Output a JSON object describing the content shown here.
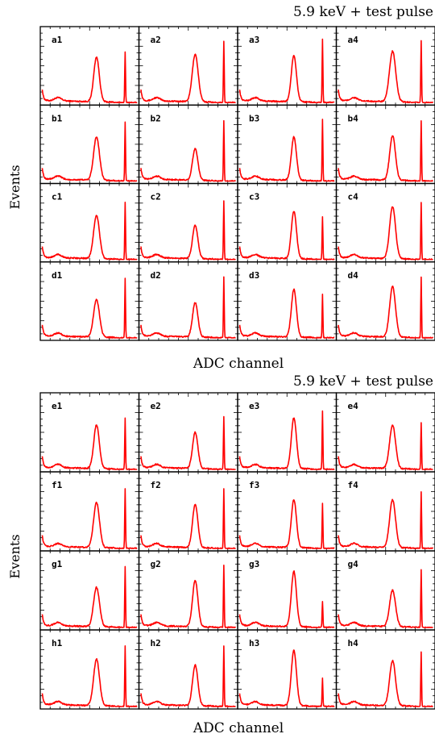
{
  "chart_data": [
    {
      "type": "line",
      "title": "5.9 keV + test pulse",
      "xlabel": "ADC channel",
      "ylabel": "Events",
      "grid": false,
      "panel_layout": "4x4",
      "line_color": "#ff0000",
      "panels": [
        {
          "label": "a1",
          "peak_x": 0.57,
          "peak_h": 0.62,
          "peak_w": 0.028,
          "pulse_x": 0.86,
          "pulse_h": 0.7
        },
        {
          "label": "a2",
          "peak_x": 0.57,
          "peak_h": 0.66,
          "peak_w": 0.03,
          "pulse_x": 0.86,
          "pulse_h": 0.85
        },
        {
          "label": "a3",
          "peak_x": 0.57,
          "peak_h": 0.64,
          "peak_w": 0.026,
          "pulse_x": 0.86,
          "pulse_h": 0.88
        },
        {
          "label": "a4",
          "peak_x": 0.57,
          "peak_h": 0.7,
          "peak_w": 0.032,
          "pulse_x": 0.86,
          "pulse_h": 0.86
        },
        {
          "label": "b1",
          "peak_x": 0.57,
          "peak_h": 0.6,
          "peak_w": 0.03,
          "pulse_x": 0.86,
          "pulse_h": 0.82
        },
        {
          "label": "b2",
          "peak_x": 0.57,
          "peak_h": 0.44,
          "peak_w": 0.027,
          "pulse_x": 0.86,
          "pulse_h": 0.84
        },
        {
          "label": "b3",
          "peak_x": 0.57,
          "peak_h": 0.6,
          "peak_w": 0.026,
          "pulse_x": 0.86,
          "pulse_h": 0.86
        },
        {
          "label": "b4",
          "peak_x": 0.57,
          "peak_h": 0.62,
          "peak_w": 0.029,
          "pulse_x": 0.86,
          "pulse_h": 0.84
        },
        {
          "label": "c1",
          "peak_x": 0.57,
          "peak_h": 0.6,
          "peak_w": 0.03,
          "pulse_x": 0.86,
          "pulse_h": 0.8
        },
        {
          "label": "c2",
          "peak_x": 0.57,
          "peak_h": 0.46,
          "peak_w": 0.027,
          "pulse_x": 0.86,
          "pulse_h": 0.82
        },
        {
          "label": "c3",
          "peak_x": 0.57,
          "peak_h": 0.66,
          "peak_w": 0.026,
          "pulse_x": 0.86,
          "pulse_h": 0.6
        },
        {
          "label": "c4",
          "peak_x": 0.57,
          "peak_h": 0.72,
          "peak_w": 0.03,
          "pulse_x": 0.86,
          "pulse_h": 0.8
        },
        {
          "label": "d1",
          "peak_x": 0.57,
          "peak_h": 0.52,
          "peak_w": 0.03,
          "pulse_x": 0.86,
          "pulse_h": 0.82
        },
        {
          "label": "d2",
          "peak_x": 0.57,
          "peak_h": 0.48,
          "peak_w": 0.027,
          "pulse_x": 0.86,
          "pulse_h": 0.84
        },
        {
          "label": "d3",
          "peak_x": 0.57,
          "peak_h": 0.66,
          "peak_w": 0.026,
          "pulse_x": 0.86,
          "pulse_h": 0.6
        },
        {
          "label": "d4",
          "peak_x": 0.57,
          "peak_h": 0.7,
          "peak_w": 0.03,
          "pulse_x": 0.86,
          "pulse_h": 0.84
        }
      ]
    },
    {
      "type": "line",
      "title": "5.9 keV + test pulse",
      "xlabel": "ADC channel",
      "ylabel": "Events",
      "grid": false,
      "panel_layout": "4x4",
      "line_color": "#ff0000",
      "panels": [
        {
          "label": "e1",
          "peak_x": 0.57,
          "peak_h": 0.6,
          "peak_w": 0.028,
          "pulse_x": 0.86,
          "pulse_h": 0.7
        },
        {
          "label": "e2",
          "peak_x": 0.57,
          "peak_h": 0.5,
          "peak_w": 0.027,
          "pulse_x": 0.86,
          "pulse_h": 0.72
        },
        {
          "label": "e3",
          "peak_x": 0.57,
          "peak_h": 0.7,
          "peak_w": 0.026,
          "pulse_x": 0.86,
          "pulse_h": 0.8
        },
        {
          "label": "e4",
          "peak_x": 0.57,
          "peak_h": 0.6,
          "peak_w": 0.03,
          "pulse_x": 0.86,
          "pulse_h": 0.64
        },
        {
          "label": "f1",
          "peak_x": 0.57,
          "peak_h": 0.62,
          "peak_w": 0.03,
          "pulse_x": 0.86,
          "pulse_h": 0.82
        },
        {
          "label": "f2",
          "peak_x": 0.57,
          "peak_h": 0.6,
          "peak_w": 0.027,
          "pulse_x": 0.86,
          "pulse_h": 0.82
        },
        {
          "label": "f3",
          "peak_x": 0.57,
          "peak_h": 0.66,
          "peak_w": 0.026,
          "pulse_x": 0.86,
          "pulse_h": 0.62
        },
        {
          "label": "f4",
          "peak_x": 0.57,
          "peak_h": 0.66,
          "peak_w": 0.03,
          "pulse_x": 0.86,
          "pulse_h": 0.78
        },
        {
          "label": "g1",
          "peak_x": 0.57,
          "peak_h": 0.54,
          "peak_w": 0.03,
          "pulse_x": 0.86,
          "pulse_h": 0.84
        },
        {
          "label": "g2",
          "peak_x": 0.57,
          "peak_h": 0.64,
          "peak_w": 0.027,
          "pulse_x": 0.86,
          "pulse_h": 0.86
        },
        {
          "label": "g3",
          "peak_x": 0.57,
          "peak_h": 0.76,
          "peak_w": 0.026,
          "pulse_x": 0.86,
          "pulse_h": 0.36
        },
        {
          "label": "g4",
          "peak_x": 0.57,
          "peak_h": 0.5,
          "peak_w": 0.03,
          "pulse_x": 0.86,
          "pulse_h": 0.8
        },
        {
          "label": "h1",
          "peak_x": 0.57,
          "peak_h": 0.64,
          "peak_w": 0.03,
          "pulse_x": 0.86,
          "pulse_h": 0.84
        },
        {
          "label": "h2",
          "peak_x": 0.57,
          "peak_h": 0.56,
          "peak_w": 0.027,
          "pulse_x": 0.86,
          "pulse_h": 0.84
        },
        {
          "label": "h3",
          "peak_x": 0.57,
          "peak_h": 0.76,
          "peak_w": 0.026,
          "pulse_x": 0.86,
          "pulse_h": 0.4
        },
        {
          "label": "h4",
          "peak_x": 0.57,
          "peak_h": 0.62,
          "peak_w": 0.03,
          "pulse_x": 0.86,
          "pulse_h": 0.76
        }
      ]
    }
  ]
}
